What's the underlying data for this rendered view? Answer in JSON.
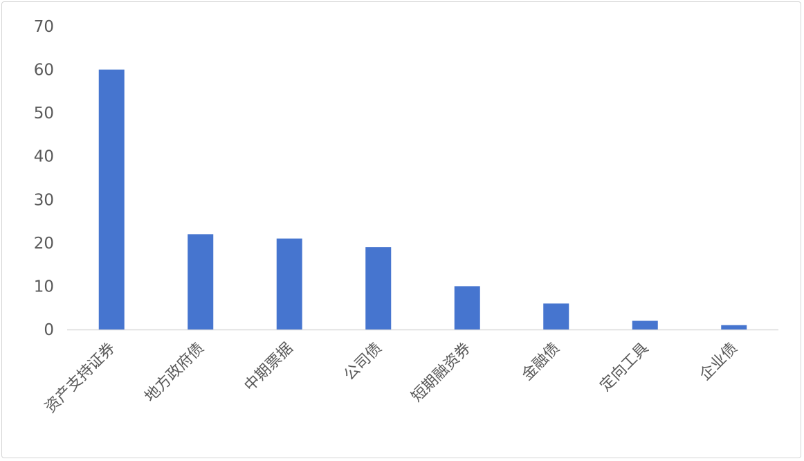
{
  "chart_data": {
    "type": "bar",
    "title": "",
    "xlabel": "",
    "ylabel": "",
    "categories": [
      "资产支持证券",
      "地方政府债",
      "中期票据",
      "公司债",
      "短期融资券",
      "金融债",
      "定向工具",
      "企业债"
    ],
    "values": [
      60,
      22,
      21,
      19,
      10,
      6,
      2,
      1
    ],
    "ylim": [
      0,
      70
    ],
    "yticks": [
      0,
      10,
      20,
      30,
      40,
      50,
      60,
      70
    ],
    "grid": false,
    "legend": "none",
    "bar_color": "#4675CF",
    "axis_color": "#D9D9D9",
    "tick_label_color": "#595959"
  }
}
